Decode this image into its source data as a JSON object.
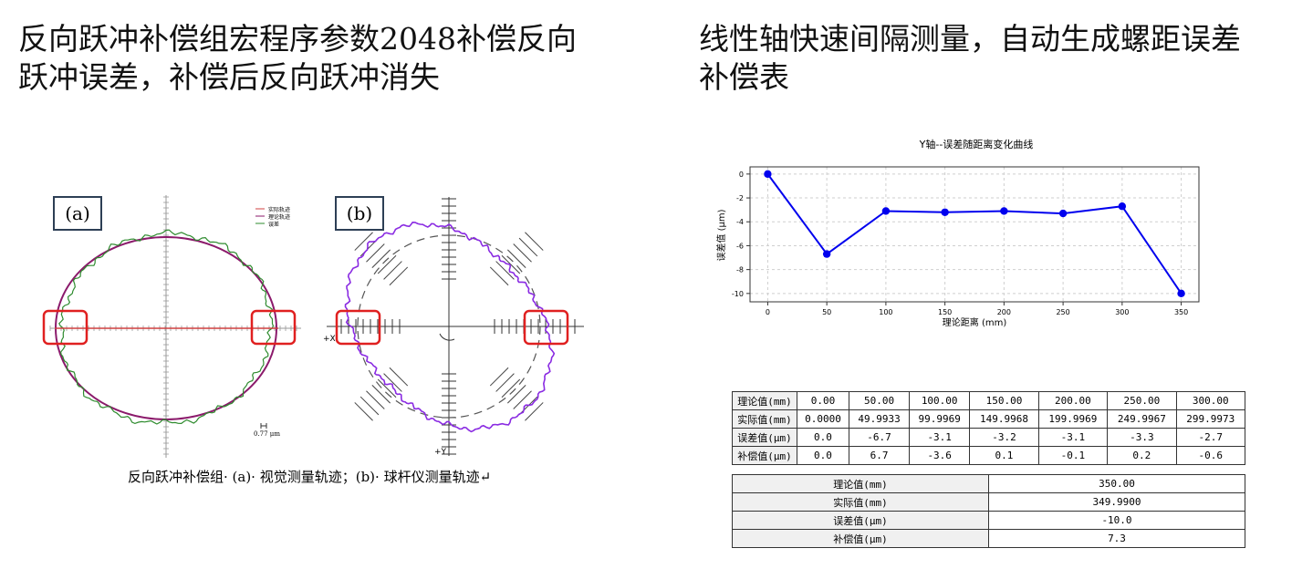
{
  "left_heading": {
    "line1": "反向跃冲补偿组宏程序参数2048补偿反向",
    "line2": "跃冲误差，补偿后反向跃冲消失"
  },
  "right_heading": {
    "line1": "线性轴快速间隔测量，自动生成螺距误差",
    "line2": "补偿表"
  },
  "panel_a": {
    "label": "(a)",
    "legend": [
      "实际轨迹",
      "理论轨迹",
      "误差"
    ],
    "scale_label": "0.77 μm",
    "colors": {
      "ideal": "#8b1a6b",
      "measured": "#2e8b2e",
      "axis": "#9a9a9a",
      "highlight": "#e02020"
    }
  },
  "panel_b": {
    "label": "(b)",
    "axis_x_label": "+X",
    "axis_y_label": "+Y",
    "colors": {
      "trace": "#8a2be2",
      "guide": "#333333",
      "highlight": "#e02020"
    }
  },
  "figure_caption": "反向跃冲补偿组· (a)· 视觉测量轨迹；(b)· 球杆仪测量轨迹↵",
  "chart_data": {
    "type": "line",
    "title": "Y轴--误差随距离变化曲线",
    "xlabel": "理论距离 (mm)",
    "ylabel": "误差值 (μm)",
    "x": [
      0,
      50,
      100,
      150,
      200,
      250,
      300,
      350
    ],
    "series": [
      {
        "values": [
          0,
          -6.7,
          -3.1,
          -3.2,
          -3.1,
          -3.3,
          -2.7,
          -10.0
        ],
        "color": "#0000ee"
      }
    ],
    "xlim": [
      -15,
      365
    ],
    "ylim": [
      -10.7,
      0.6
    ],
    "xticks": [
      0,
      50,
      100,
      150,
      200,
      250,
      300,
      350
    ],
    "yticks": [
      0,
      -2,
      -4,
      -6,
      -8,
      -10
    ],
    "grid": true
  },
  "table1": {
    "rows": [
      {
        "header": "理论值(mm)",
        "cells": [
          "0.00",
          "50.00",
          "100.00",
          "150.00",
          "200.00",
          "250.00",
          "300.00"
        ]
      },
      {
        "header": "实际值(mm)",
        "cells": [
          "0.0000",
          "49.9933",
          "99.9969",
          "149.9968",
          "199.9969",
          "249.9967",
          "299.9973"
        ]
      },
      {
        "header": "误差值(μm)",
        "cells": [
          "0.0",
          "-6.7",
          "-3.1",
          "-3.2",
          "-3.1",
          "-3.3",
          "-2.7"
        ]
      },
      {
        "header": "补偿值(μm)",
        "cells": [
          "0.0",
          "6.7",
          "-3.6",
          "0.1",
          "-0.1",
          "0.2",
          "-0.6"
        ]
      }
    ]
  },
  "table2": {
    "rows": [
      {
        "header": "理论值(mm)",
        "value": "350.00"
      },
      {
        "header": "实际值(mm)",
        "value": "349.9900"
      },
      {
        "header": "误差值(μm)",
        "value": "-10.0"
      },
      {
        "header": "补偿值(μm)",
        "value": "7.3"
      }
    ]
  }
}
